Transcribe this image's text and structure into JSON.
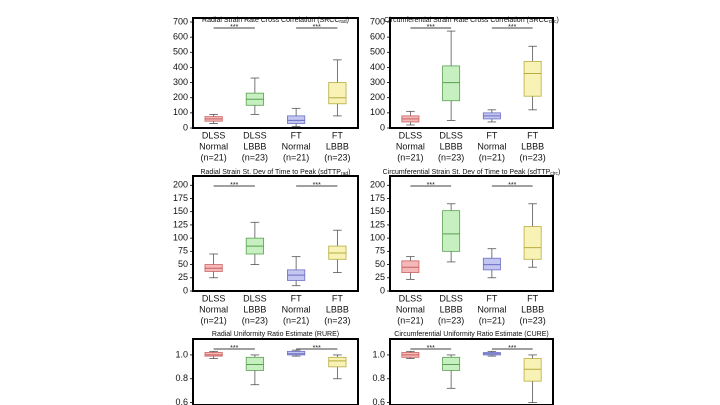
{
  "chart_data": [
    {
      "type": "box",
      "title": "Radial Strain Rate Cross Correlation (SRCC",
      "title_sub": "rad",
      "title_end": ")",
      "categories": [
        [
          "DLSS",
          "Normal",
          "(n=21)"
        ],
        [
          "DLSS",
          "LBBB",
          "(n=23)"
        ],
        [
          "FT",
          "Normal",
          "(n=21)"
        ],
        [
          "FT",
          "LBBB",
          "(n=23)"
        ]
      ],
      "colors": [
        "#f4b8b8",
        "#c6f0c0",
        "#c4c6f2",
        "#f8f2b6"
      ],
      "boxes": [
        {
          "min": 30,
          "q1": 45,
          "median": 60,
          "q3": 75,
          "max": 90
        },
        {
          "min": 90,
          "q1": 150,
          "median": 190,
          "q3": 230,
          "max": 330
        },
        {
          "min": 10,
          "q1": 30,
          "median": 50,
          "q3": 80,
          "max": 130
        },
        {
          "min": 80,
          "q1": 160,
          "median": 200,
          "q3": 300,
          "max": 450
        }
      ],
      "annotations": [
        "***",
        "***"
      ],
      "ylim": [
        0,
        700
      ],
      "yticks": [
        0,
        100,
        200,
        300,
        400,
        500,
        600,
        700
      ]
    },
    {
      "type": "box",
      "title": "Circumferential Strain Rate Cross Correlation (SRCC",
      "title_sub": "circ",
      "title_end": ")",
      "categories": [
        [
          "DLSS",
          "Normal",
          "(n=21)"
        ],
        [
          "DLSS",
          "LBBB",
          "(n=23)"
        ],
        [
          "FT",
          "Normal",
          "(n=21)"
        ],
        [
          "FT",
          "LBBB",
          "(n=23)"
        ]
      ],
      "colors": [
        "#f4b8b8",
        "#c6f0c0",
        "#c4c6f2",
        "#f8f2b6"
      ],
      "boxes": [
        {
          "min": 20,
          "q1": 40,
          "median": 60,
          "q3": 80,
          "max": 110
        },
        {
          "min": 50,
          "q1": 180,
          "median": 300,
          "q3": 410,
          "max": 640
        },
        {
          "min": 40,
          "q1": 60,
          "median": 80,
          "q3": 100,
          "max": 120
        },
        {
          "min": 120,
          "q1": 210,
          "median": 360,
          "q3": 440,
          "max": 540
        }
      ],
      "annotations": [
        "***",
        "***"
      ],
      "ylim": [
        0,
        700
      ],
      "yticks": [
        0,
        100,
        200,
        300,
        400,
        500,
        600,
        700
      ]
    },
    {
      "type": "box",
      "title": "Radial Strain St. Dev of Time to Peak (sdTTP",
      "title_sub": "rad",
      "title_end": ")",
      "categories": [
        [
          "DLSS",
          "Normal",
          "(n=21)"
        ],
        [
          "DLSS",
          "LBBB",
          "(n=23)"
        ],
        [
          "FT",
          "Normal",
          "(n=21)"
        ],
        [
          "FT",
          "LBBB",
          "(n=23)"
        ]
      ],
      "colors": [
        "#f4b8b8",
        "#c6f0c0",
        "#c4c6f2",
        "#f8f2b6"
      ],
      "boxes": [
        {
          "min": 25,
          "q1": 37,
          "median": 43,
          "q3": 50,
          "max": 70
        },
        {
          "min": 50,
          "q1": 70,
          "median": 85,
          "q3": 100,
          "max": 130
        },
        {
          "min": 10,
          "q1": 20,
          "median": 30,
          "q3": 40,
          "max": 65
        },
        {
          "min": 35,
          "q1": 60,
          "median": 72,
          "q3": 85,
          "max": 115
        }
      ],
      "annotations": [
        "***",
        "***"
      ],
      "ylim": [
        0,
        210
      ],
      "yticks": [
        0,
        25,
        50,
        75,
        100,
        125,
        150,
        175,
        200
      ]
    },
    {
      "type": "box",
      "title": "Circumferential Strain St. Dev of Time to Peak (sdTTP",
      "title_sub": "circ",
      "title_end": ")",
      "categories": [
        [
          "DLSS",
          "Normal",
          "(n=21)"
        ],
        [
          "DLSS",
          "LBBB",
          "(n=23)"
        ],
        [
          "FT",
          "Normal",
          "(n=21)"
        ],
        [
          "FT",
          "LBBB",
          "(n=23)"
        ]
      ],
      "colors": [
        "#f4b8b8",
        "#c6f0c0",
        "#c4c6f2",
        "#f8f2b6"
      ],
      "boxes": [
        {
          "min": 22,
          "q1": 35,
          "median": 45,
          "q3": 57,
          "max": 65
        },
        {
          "min": 55,
          "q1": 75,
          "median": 108,
          "q3": 152,
          "max": 165
        },
        {
          "min": 25,
          "q1": 40,
          "median": 50,
          "q3": 62,
          "max": 80
        },
        {
          "min": 45,
          "q1": 60,
          "median": 82,
          "q3": 122,
          "max": 165
        }
      ],
      "annotations": [
        "***",
        "***"
      ],
      "ylim": [
        0,
        210
      ],
      "yticks": [
        0,
        25,
        50,
        75,
        100,
        125,
        150,
        175,
        200
      ]
    },
    {
      "type": "box",
      "title": "Radial Uniformity Ratio Estimate (RURE)",
      "colors": [
        "#f4b8b8",
        "#c6f0c0",
        "#c4c6f2",
        "#f8f2b6"
      ],
      "boxes": [
        {
          "min": 0.97,
          "q1": 0.99,
          "median": 1.0,
          "q3": 1.02,
          "max": 1.03
        },
        {
          "min": 0.75,
          "q1": 0.87,
          "median": 0.92,
          "q3": 0.98,
          "max": 1.0
        },
        {
          "min": 0.99,
          "q1": 1.0,
          "median": 1.01,
          "q3": 1.03,
          "max": 1.04
        },
        {
          "min": 0.8,
          "q1": 0.9,
          "median": 0.95,
          "q3": 0.98,
          "max": 1.0
        }
      ],
      "annotations": [
        "***",
        "***"
      ],
      "ylim": [
        0.58,
        1.1
      ],
      "yticks": [
        0.6,
        0.8,
        {
          "value": 1,
          "label": "1.0"
        }
      ]
    },
    {
      "type": "box",
      "title": "Circumferential Uniformity Ratio Estimate (CURE)",
      "colors": [
        "#f4b8b8",
        "#c6f0c0",
        "#c4c6f2",
        "#f8f2b6"
      ],
      "boxes": [
        {
          "min": 0.97,
          "q1": 0.98,
          "median": 1.0,
          "q3": 1.02,
          "max": 1.03
        },
        {
          "min": 0.72,
          "q1": 0.87,
          "median": 0.92,
          "q3": 0.98,
          "max": 1.0
        },
        {
          "min": 0.99,
          "q1": 1.0,
          "median": 1.01,
          "q3": 1.02,
          "max": 1.03
        },
        {
          "min": 0.6,
          "q1": 0.78,
          "median": 0.88,
          "q3": 0.97,
          "max": 1.0
        }
      ],
      "annotations": [
        "***",
        "***"
      ],
      "ylim": [
        0.58,
        1.1
      ],
      "yticks": [
        0.6,
        0.8,
        {
          "value": 1,
          "label": "1.0"
        }
      ]
    }
  ]
}
